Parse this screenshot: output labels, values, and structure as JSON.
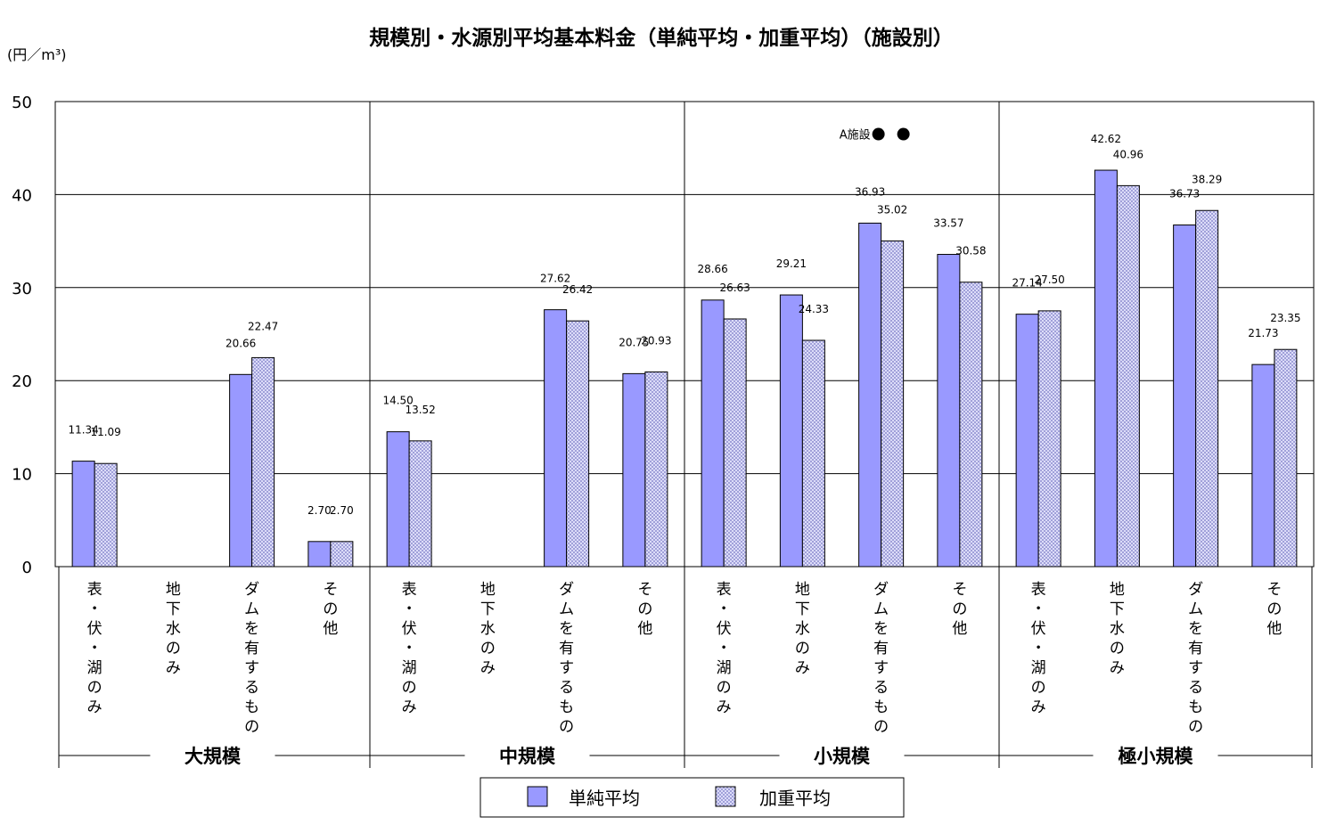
{
  "chart_data": {
    "type": "bar",
    "title": "規模別・水源別平均基本料金（単純平均・加重平均）（施設別）",
    "unit_label": "(円／m³)",
    "ylim": [
      0,
      50
    ],
    "yticks": [
      "0",
      "10",
      "20",
      "30",
      "40",
      "50"
    ],
    "grid": true,
    "legend_position": "bottom",
    "groups": [
      {
        "label": "大規模",
        "categories": [
          "表・伏・湖のみ",
          "地下水のみ",
          "ダムを有するもの",
          "その他"
        ]
      },
      {
        "label": "中規模",
        "categories": [
          "表・伏・湖のみ",
          "地下水のみ",
          "ダムを有するもの",
          "その他"
        ]
      },
      {
        "label": "小規模",
        "categories": [
          "表・伏・湖のみ",
          "地下水のみ",
          "ダムを有するもの",
          "その他"
        ]
      },
      {
        "label": "極小規模",
        "categories": [
          "表・伏・湖のみ",
          "地下水のみ",
          "ダムを有するもの",
          "その他"
        ]
      }
    ],
    "series": [
      {
        "name": "単純平均",
        "color": "#9999ff",
        "pattern": "solid",
        "values": [
          11.34,
          null,
          20.66,
          2.7,
          14.5,
          null,
          27.62,
          20.75,
          28.66,
          29.21,
          36.93,
          33.57,
          27.14,
          42.62,
          36.73,
          21.73
        ],
        "labels": [
          "11.34",
          "",
          "20.66",
          "2.70",
          "14.50",
          "",
          "27.62",
          "20.75",
          "28.66",
          "29.21",
          "36.93",
          "33.57",
          "27.14",
          "42.62",
          "36.73",
          "21.73"
        ]
      },
      {
        "name": "加重平均",
        "color": "#ccccff",
        "pattern": "crosshatch",
        "values": [
          11.09,
          null,
          22.47,
          2.7,
          13.52,
          null,
          26.42,
          20.93,
          26.63,
          24.33,
          35.02,
          30.58,
          27.5,
          40.96,
          38.29,
          23.35
        ],
        "labels": [
          "11.09",
          "",
          "22.47",
          "2.70",
          "13.52",
          "",
          "26.42",
          "20.93",
          "26.63",
          "24.33",
          "35.02",
          "30.58",
          "27.50",
          "40.96",
          "38.29",
          "23.35"
        ]
      }
    ],
    "annotation": {
      "text": "A施設",
      "group_index": 2,
      "category_index": 2,
      "y": 46.5,
      "markers": 2
    }
  }
}
